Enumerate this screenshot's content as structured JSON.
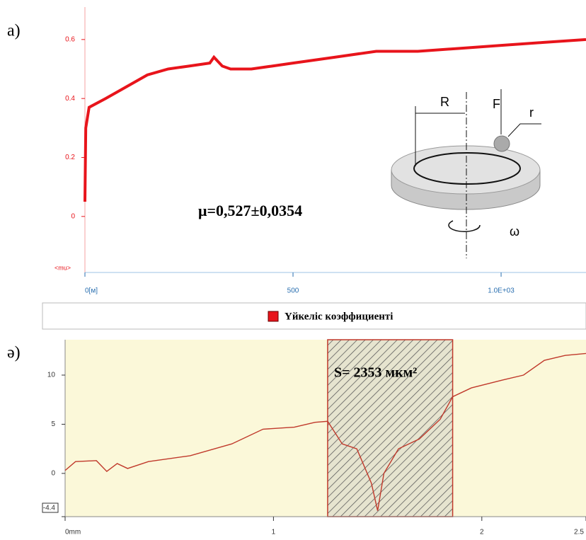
{
  "chart_data": [
    {
      "type": "line",
      "panel_label": "а)",
      "y_label": "<mu>",
      "annotation": "μ=0,527±0,0354",
      "legend": "Үйкеліс коэффициенті",
      "diagram_labels": [
        "R",
        "F",
        "r",
        "ω"
      ],
      "series": [
        {
          "name": "Үйкеліс коэффициенті",
          "color": "#e8141b",
          "x": [
            0,
            2,
            10,
            50,
            100,
            150,
            200,
            250,
            300,
            310,
            330,
            350,
            400,
            450,
            500,
            600,
            700,
            800,
            900,
            1000,
            1100,
            1204
          ],
          "values": [
            0.05,
            0.3,
            0.37,
            0.4,
            0.44,
            0.48,
            0.5,
            0.51,
            0.52,
            0.54,
            0.51,
            0.5,
            0.5,
            0.51,
            0.52,
            0.54,
            0.56,
            0.56,
            0.57,
            0.58,
            0.59,
            0.6
          ]
        }
      ],
      "xlim": [
        0,
        1204
      ],
      "ylim": [
        -0.19,
        0.71
      ],
      "xticks": [
        {
          "value": 0,
          "label": "0[м]"
        },
        500,
        {
          "value": 1000,
          "label": "1.0E+03"
        }
      ],
      "yticks": [
        0,
        0.2,
        0.4,
        0.6
      ]
    },
    {
      "type": "line",
      "panel_label": "ә)",
      "annotation": "S= 2353 мкм²",
      "shaded_region": [
        1.26,
        1.86
      ],
      "series": [
        {
          "name": null,
          "color": "#c0392b",
          "x": [
            0,
            0.05,
            0.15,
            0.2,
            0.25,
            0.3,
            0.4,
            0.6,
            0.8,
            0.95,
            1.1,
            1.2,
            1.26,
            1.33,
            1.4,
            1.47,
            1.5,
            1.53,
            1.6,
            1.7,
            1.8,
            1.86,
            1.95,
            2.1,
            2.2,
            2.3,
            2.4,
            2.5
          ],
          "values": [
            0.3,
            1.2,
            1.3,
            0.2,
            1,
            0.5,
            1.2,
            1.8,
            3,
            4.5,
            4.7,
            5.2,
            5.3,
            3,
            2.5,
            -1,
            -3.8,
            0,
            2.5,
            3.5,
            5.5,
            7.8,
            8.7,
            9.5,
            10,
            11.5,
            12,
            12.2
          ]
        }
      ],
      "xlim": [
        0,
        2.5
      ],
      "ylim": [
        -4.4,
        13.6
      ],
      "xticks": [
        {
          "value": 0,
          "label": "0mm"
        },
        1,
        2,
        2.5
      ],
      "yticks": [
        -4.4,
        0,
        5,
        10
      ]
    }
  ]
}
